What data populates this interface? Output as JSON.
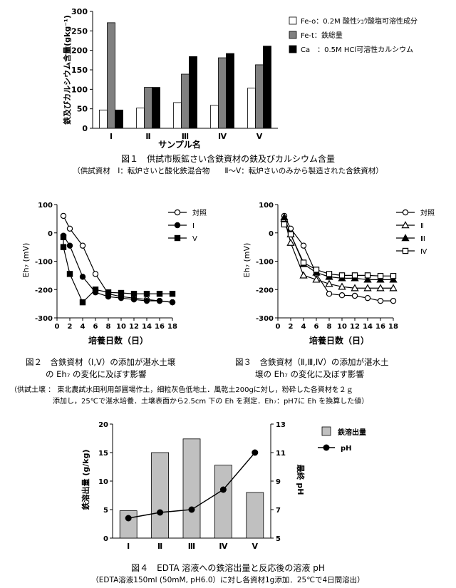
{
  "chart_data": [
    {
      "id": "fig1",
      "type": "bar",
      "title": "図１　供試市販鉱さい含鉄資材の鉄及びカルシウム含量",
      "subtitle": "（供試資材　Ⅰ：転炉さいと酸化鉄混合物　　Ⅱ～Ⅴ：転炉さいのみから製造された含鉄資材）",
      "xlabel": "サンプル名",
      "ylabel": "鉄及びカルシウム含量(gkg⁻¹)",
      "ylim": [
        0,
        300
      ],
      "yticks": [
        "0",
        "50",
        "100",
        "150",
        "200",
        "250",
        "300"
      ],
      "categories": [
        "Ⅰ",
        "Ⅱ",
        "Ⅲ",
        "Ⅳ",
        "Ⅴ"
      ],
      "series": [
        {
          "name": "Fe-o：0.2M 酸性ｼｭｳ酸塩可溶性成分",
          "color": "#ffffff",
          "values": [
            47,
            52,
            66,
            59,
            103
          ]
        },
        {
          "name": "Fe-t：鉄総量",
          "color": "#808080",
          "values": [
            271,
            105,
            139,
            181,
            163
          ]
        },
        {
          "name": "Ca　：0.5M HCl可溶性カルシウム",
          "color": "#000000",
          "values": [
            47,
            105,
            184,
            192,
            211
          ]
        }
      ],
      "legend": "right"
    },
    {
      "id": "fig2",
      "type": "line",
      "caption_lines": [
        "図２　含鉄資材（Ⅰ,Ⅴ）の添加が湛水土壌",
        "の Eh₇ の変化に及ぼす影響"
      ],
      "xlabel": "培養日数（日）",
      "ylabel": "Eh₇ (mV)",
      "xlim": [
        0,
        18
      ],
      "ylim": [
        -300,
        100
      ],
      "xticks": [
        "0",
        "2",
        "4",
        "6",
        "8",
        "10",
        "12",
        "14",
        "16",
        "18"
      ],
      "yticks": [
        "-300",
        "-200",
        "-100",
        "0",
        "100"
      ],
      "x": [
        1,
        2,
        4,
        6,
        8,
        10,
        12,
        14,
        16,
        18
      ],
      "series": [
        {
          "name": "対照",
          "marker": "circle-open",
          "values": [
            60,
            15,
            -45,
            -145,
            -215,
            -225,
            -230,
            -235,
            -240,
            -245
          ]
        },
        {
          "name": "Ⅰ",
          "marker": "circle-filled",
          "values": [
            -10,
            -45,
            -155,
            -210,
            -225,
            -230,
            -235,
            -240,
            -240,
            -245
          ]
        },
        {
          "name": "Ⅴ",
          "marker": "square-filled",
          "values": [
            -15,
            -50,
            -145,
            -245,
            -200,
            -210,
            -212,
            -215,
            -215,
            -215,
            -215
          ],
          "x": [
            1,
            1,
            2,
            4,
            6,
            8,
            10,
            12,
            14,
            16,
            18
          ]
        }
      ]
    },
    {
      "id": "fig3",
      "type": "line",
      "caption_lines": [
        "図３　含鉄資材（Ⅱ,Ⅲ,Ⅳ）の添加が湛水土",
        "壌の Eh₇ の変化に及ぼす影響"
      ],
      "xlabel": "培養日数（日）",
      "ylabel": "Eh₇ (mV)",
      "xlim": [
        0,
        18
      ],
      "ylim": [
        -300,
        100
      ],
      "xticks": [
        "0",
        "2",
        "4",
        "6",
        "8",
        "10",
        "12",
        "14",
        "16",
        "18"
      ],
      "yticks": [
        "-300",
        "-200",
        "-100",
        "0",
        "100"
      ],
      "x": [
        1,
        2,
        4,
        6,
        8,
        10,
        12,
        14,
        16,
        18
      ],
      "series": [
        {
          "name": "対照",
          "marker": "circle-open",
          "values": [
            60,
            15,
            -45,
            -145,
            -215,
            -220,
            -222,
            -230,
            -240,
            -240
          ]
        },
        {
          "name": "Ⅱ",
          "marker": "triangle-open",
          "values": [
            50,
            -35,
            -150,
            -165,
            -180,
            -190,
            -195,
            -195,
            -195,
            -195
          ]
        },
        {
          "name": "Ⅲ",
          "marker": "triangle-filled",
          "values": [
            55,
            -5,
            -110,
            -140,
            -155,
            -160,
            -160,
            -165,
            -165,
            -165
          ]
        },
        {
          "name": "Ⅳ",
          "marker": "square-open",
          "values": [
            30,
            -5,
            -105,
            -130,
            -145,
            -150,
            -150,
            -150,
            -152,
            -152
          ]
        }
      ]
    },
    {
      "id": "fig4",
      "type": "bar",
      "title": "図４　EDTA 溶液への鉄溶出量と反応後の溶液 pH",
      "subtitle": "（EDTA溶液150ml (50mM, pH6.0）に対し各資材1g添加．25℃で4日間溶出）",
      "ylabel": "鉄溶出量 (g/kg)",
      "y2label": "最終 pH",
      "ylim": [
        0,
        20
      ],
      "y2lim": [
        5,
        13
      ],
      "yticks": [
        "0",
        "5",
        "10",
        "15",
        "20"
      ],
      "y2ticks": [
        "5",
        "7",
        "9",
        "11",
        "13"
      ],
      "categories": [
        "Ⅰ",
        "Ⅱ",
        "Ⅲ",
        "Ⅳ",
        "Ⅴ"
      ],
      "series": [
        {
          "name": "鉄溶出量",
          "kind": "bar",
          "axis": "left",
          "color": "#c0c0c0",
          "values": [
            4.8,
            15.0,
            17.4,
            12.8,
            8.0
          ]
        },
        {
          "name": "pH",
          "kind": "line",
          "axis": "right",
          "color": "#000000",
          "values": [
            6.4,
            6.8,
            7.0,
            8.4,
            11.0
          ]
        }
      ]
    }
  ],
  "shared_note": [
    "（供試土壌 ： 東北農試水田利用部圃場作土，細粒灰色低地土．風乾土200gに対し，粉砕した各資材を２ｇ",
    "添加し，25℃で湛水培養．土壌表面から2.5cm 下の Eh を測定．Eh₇：pH7に Eh を換算した値）"
  ]
}
